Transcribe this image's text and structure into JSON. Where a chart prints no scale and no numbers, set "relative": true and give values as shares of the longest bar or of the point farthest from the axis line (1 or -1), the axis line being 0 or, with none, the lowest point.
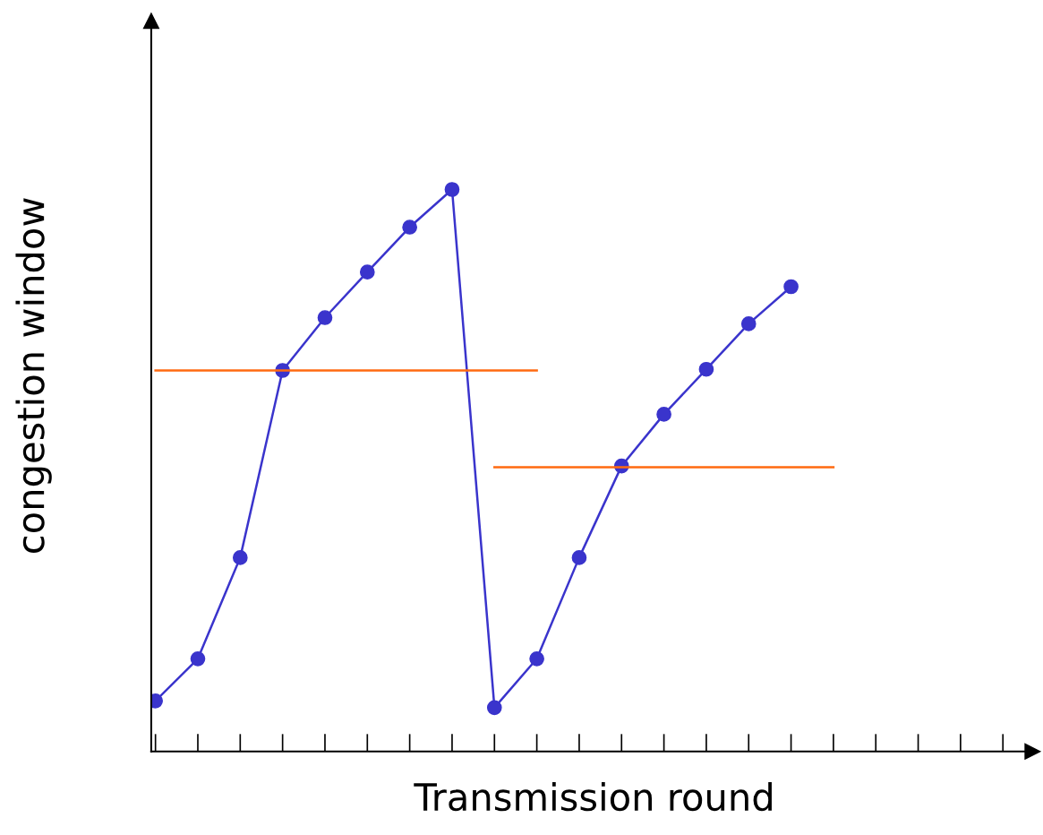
{
  "chart_data": {
    "type": "line",
    "relative": true,
    "xlabel": "Transmission round",
    "ylabel": "congestion window",
    "categories": [
      null,
      null,
      null,
      null,
      null,
      null,
      null,
      null,
      null,
      null,
      null,
      null,
      null,
      null,
      null,
      null,
      null,
      null,
      null,
      null,
      null
    ],
    "series": [
      {
        "color": "#3a34cc",
        "marker": "circle",
        "values": [
          0.09,
          0.165,
          0.345,
          0.678,
          0.772,
          0.853,
          0.933,
          1,
          0.078,
          0.165,
          0.345,
          0.508,
          0.6,
          0.68,
          0.761,
          0.827,
          null,
          null,
          null,
          null,
          null
        ]
      },
      {
        "color": "#ff6a10",
        "marker": "none",
        "values": [
          0.678,
          0.678,
          0.678,
          0.678,
          0.678,
          0.678,
          0.678,
          0.678,
          0.678,
          0.678,
          null,
          null,
          null,
          null,
          null,
          null,
          null,
          null,
          null,
          null,
          null
        ]
      },
      {
        "color": "#ff6a10",
        "marker": "none",
        "values": [
          null,
          null,
          null,
          null,
          null,
          null,
          null,
          null,
          0.506,
          0.506,
          0.506,
          0.506,
          0.506,
          0.506,
          0.506,
          0.506,
          0.506,
          null,
          null,
          null,
          null
        ]
      }
    ],
    "grid": false,
    "legend": false
  }
}
